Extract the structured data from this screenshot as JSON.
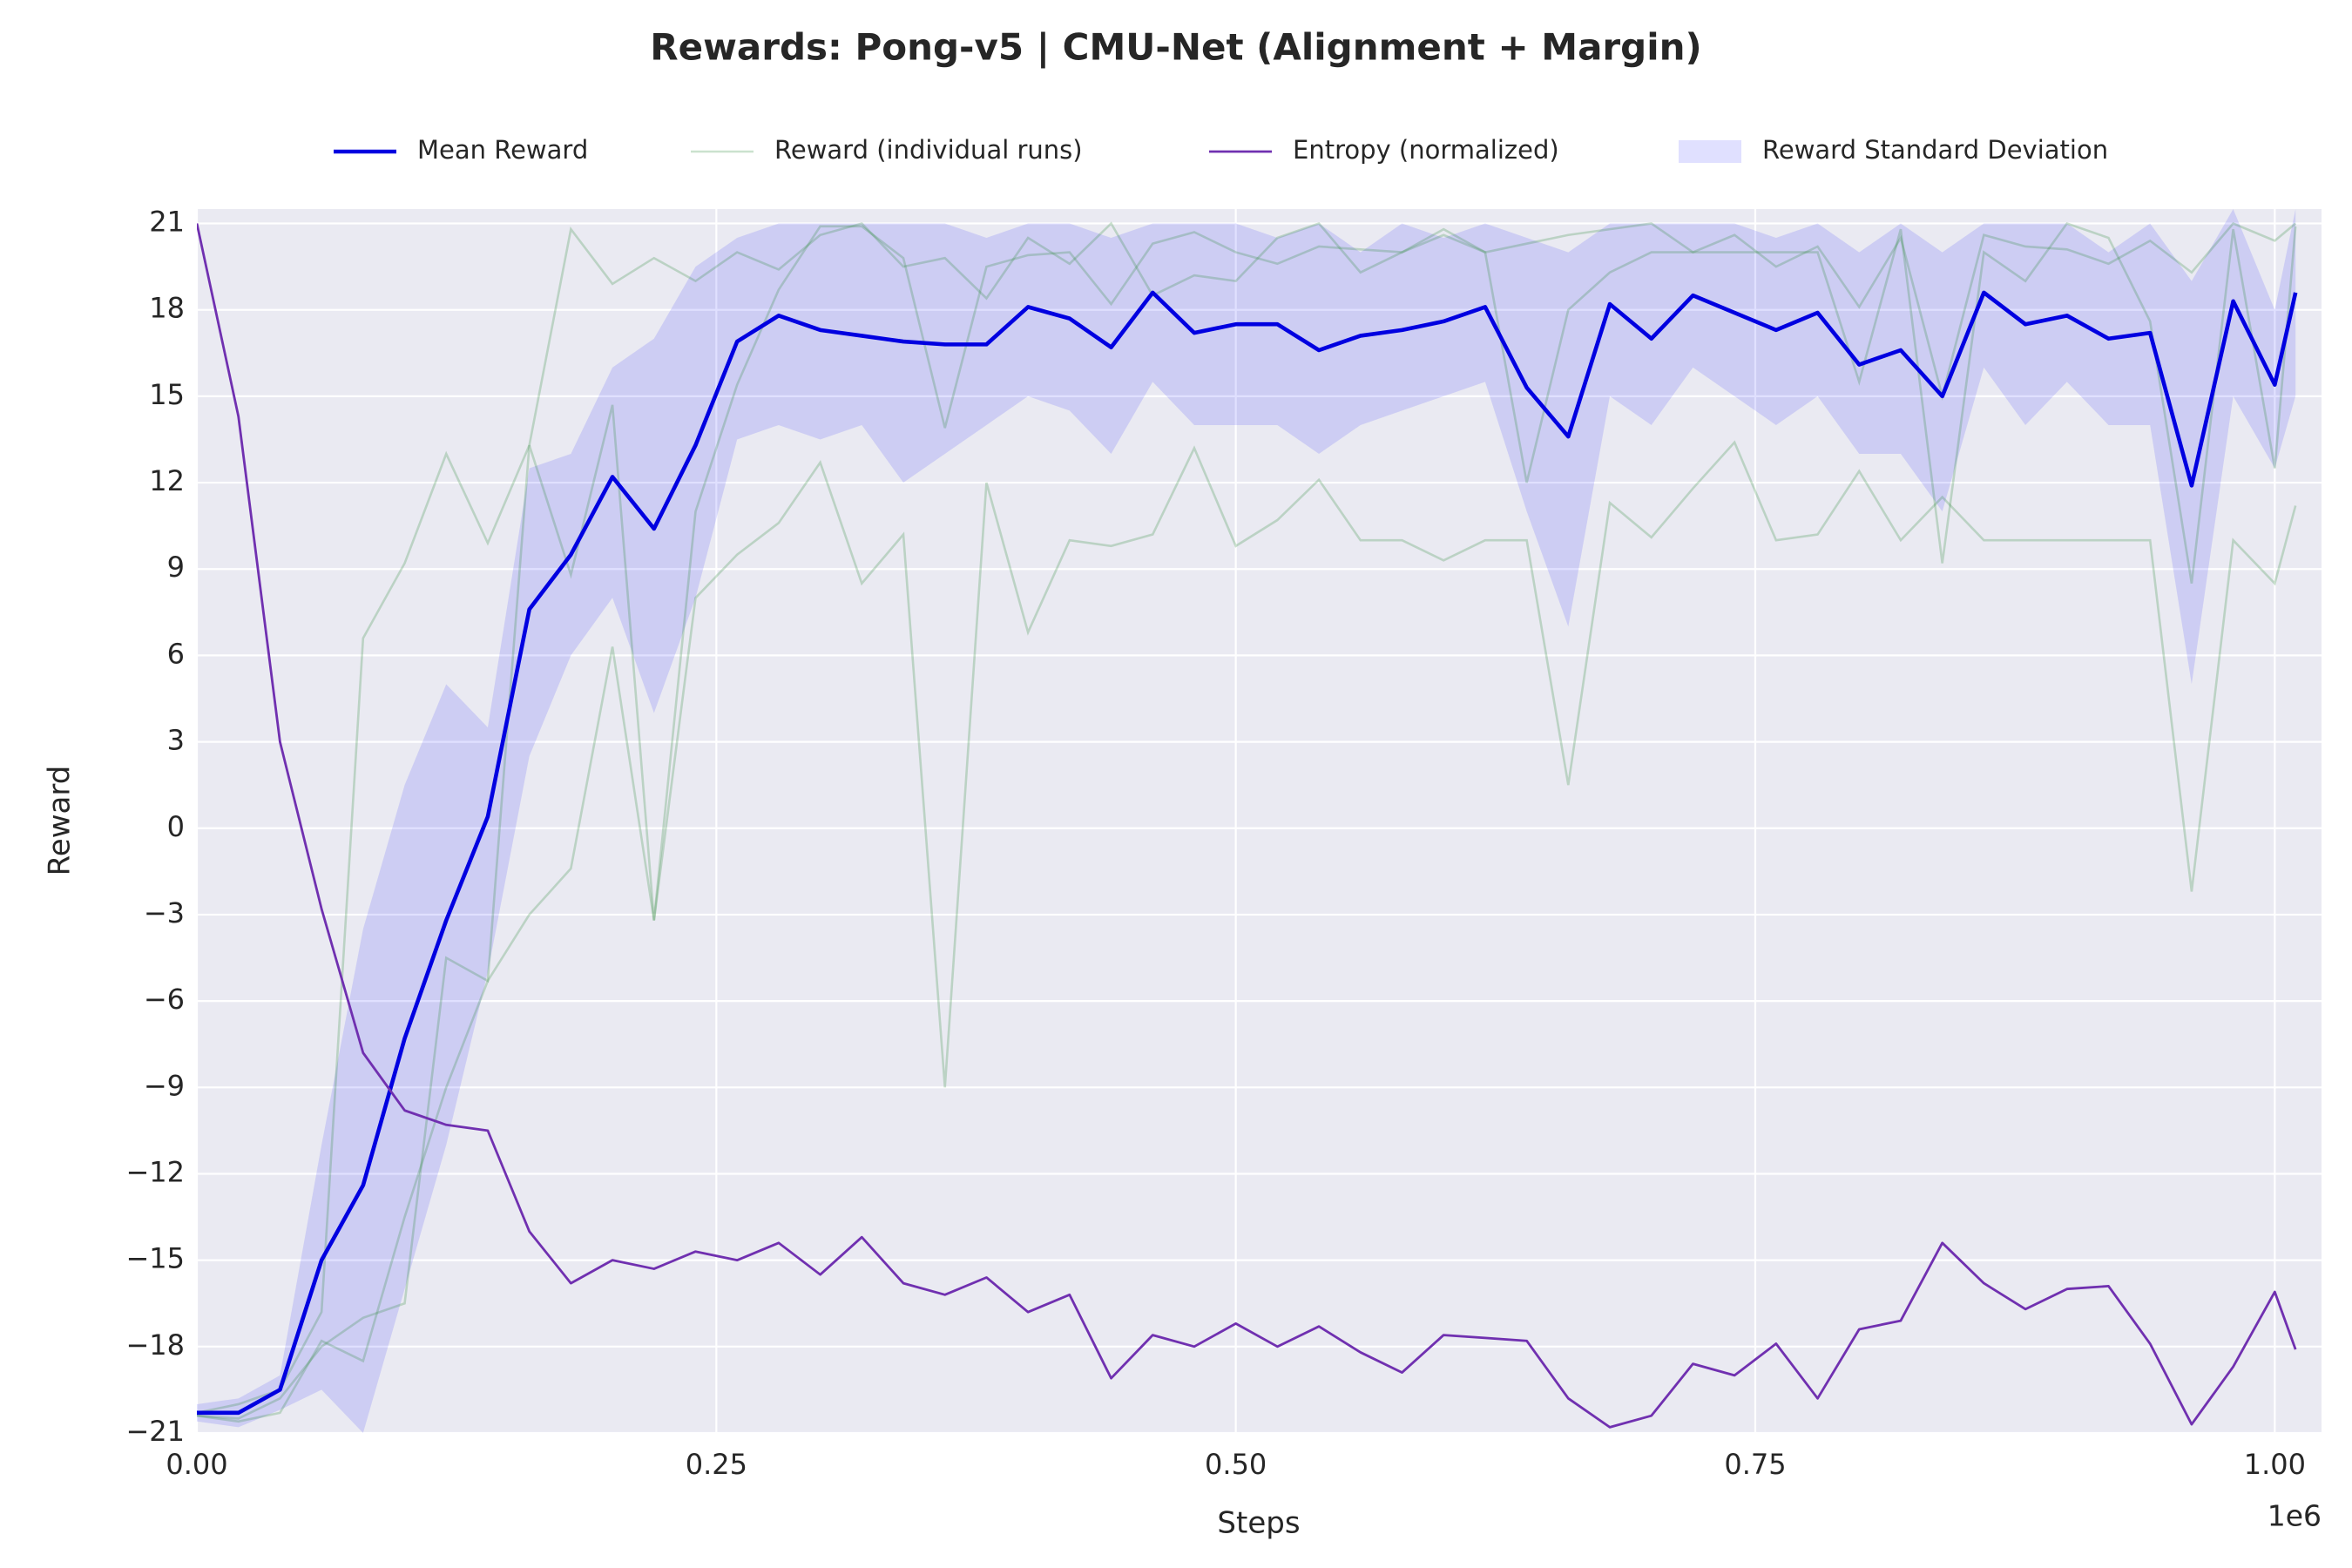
{
  "chart_data": {
    "type": "line",
    "title": "Rewards: Pong-v5 | CMU-Net (Alignment + Margin)",
    "xlabel": "Steps",
    "ylabel": "Reward",
    "x_offset_label": "1e6",
    "x": [
      0,
      20000,
      40000,
      60000,
      80000,
      100000,
      120000,
      140000,
      160000,
      180000,
      200000,
      220000,
      240000,
      260000,
      280000,
      300000,
      320000,
      340000,
      360000,
      380000,
      400000,
      420000,
      440000,
      460000,
      480000,
      500000,
      520000,
      540000,
      560000,
      580000,
      600000,
      620000,
      640000,
      660000,
      680000,
      700000,
      720000,
      740000,
      760000,
      780000,
      800000,
      820000,
      840000,
      860000,
      880000,
      900000,
      920000,
      940000,
      960000,
      980000,
      1000000,
      1010000
    ],
    "band": {
      "name": "Reward Standard Deviation",
      "color": "#0000ff",
      "upper": [
        -20,
        -19.8,
        -19,
        -11,
        -3.5,
        1.5,
        5,
        3.5,
        12.5,
        13,
        16,
        17,
        19.5,
        20.5,
        21,
        21,
        21,
        21,
        21,
        20.5,
        21,
        21,
        20.5,
        21,
        21,
        21,
        20.5,
        21,
        20,
        21,
        20.5,
        21,
        20.5,
        20,
        21,
        21,
        21,
        21,
        20.5,
        21,
        20,
        21,
        20,
        21,
        21,
        21,
        20,
        21,
        19,
        21.5,
        18,
        21.5
      ],
      "lower": [
        -20.6,
        -20.8,
        -20.2,
        -19.5,
        -21,
        -16,
        -11,
        -5,
        2.5,
        6,
        8,
        4,
        8,
        13.5,
        14,
        13.5,
        14,
        12,
        13,
        14,
        15,
        14.5,
        13,
        15.5,
        14,
        14,
        14,
        13,
        14,
        14.5,
        15,
        15.5,
        11,
        7,
        15,
        14,
        16,
        15,
        14,
        15,
        13,
        13,
        11,
        16,
        14,
        15.5,
        14,
        14,
        5,
        15,
        12.5,
        15
      ]
    },
    "runs": {
      "name": "Reward (individual runs)",
      "color": "#2e8b3a",
      "values": [
        [
          -20.4,
          -20.6,
          -20.3,
          -17.8,
          -18.5,
          -13.5,
          -9,
          -5.3,
          -3,
          -1.4,
          6.3,
          -3.2,
          8,
          9.5,
          10.6,
          12.7,
          8.5,
          10.2,
          -9,
          12,
          6.8,
          10,
          9.8,
          10.2,
          13.2,
          9.8,
          10.7,
          12.1,
          10,
          10,
          9.3,
          10,
          10,
          1.5,
          11.3,
          10.1,
          11.8,
          13.4,
          10,
          10.2,
          12.4,
          10,
          11.5,
          10,
          10,
          10,
          10,
          10,
          -2.2,
          10,
          8.5,
          11.2
        ],
        [
          -20.3,
          -20,
          -19.5,
          -16.8,
          6.6,
          9.2,
          13,
          9.9,
          13.3,
          20.8,
          18.9,
          19.8,
          19,
          20,
          19.4,
          20.6,
          21,
          19.5,
          19.8,
          18.4,
          20.5,
          19.6,
          21,
          18.5,
          19.2,
          19,
          20.5,
          21,
          19.3,
          20,
          20.6,
          20,
          20.3,
          20.6,
          20.8,
          21,
          20,
          20.6,
          19.5,
          20.2,
          18.1,
          20.5,
          15,
          20.6,
          20.2,
          20.1,
          19.6,
          20.4,
          19.3,
          21,
          20.4,
          21
        ],
        [
          -20.4,
          -20.5,
          -19.8,
          -18,
          -17,
          -16.5,
          -4.5,
          -5.3,
          13.3,
          8.8,
          14.7,
          -3.2,
          11,
          15.4,
          18.7,
          20.9,
          20.9,
          19.8,
          13.9,
          19.5,
          19.9,
          20,
          18.2,
          20.3,
          20.7,
          20,
          19.6,
          20.2,
          20.1,
          20,
          20.8,
          20,
          12,
          18,
          19.3,
          20,
          20,
          20,
          20,
          20,
          15.5,
          20.8,
          9.2,
          20,
          19,
          21,
          20.5,
          17.6,
          8.5,
          20.8,
          12.5,
          20.9
        ]
      ]
    },
    "series": [
      {
        "name": "Mean Reward",
        "color": "#0000e0",
        "values": [
          -20.3,
          -20.3,
          -19.5,
          -15,
          -12.4,
          -7.3,
          -3.2,
          0.4,
          7.6,
          9.5,
          12.2,
          10.4,
          13.3,
          16.9,
          17.8,
          17.3,
          17.1,
          16.9,
          16.8,
          16.8,
          18.1,
          17.7,
          16.7,
          18.6,
          17.2,
          17.5,
          17.5,
          16.6,
          17.1,
          17.3,
          17.6,
          18.1,
          15.3,
          13.6,
          18.2,
          17,
          18.5,
          17.9,
          17.3,
          17.9,
          16.1,
          16.6,
          15,
          18.6,
          17.5,
          17.8,
          17,
          17.2,
          11.9,
          18.3,
          15.4,
          18.6
        ]
      },
      {
        "name": "Entropy (normalized)",
        "color": "#7030b0",
        "values": [
          21,
          14.3,
          3,
          -2.8,
          -7.8,
          -9.8,
          -10.3,
          -10.5,
          -14,
          -15.8,
          -15,
          -15.3,
          -14.7,
          -15,
          -14.4,
          -15.5,
          -14.2,
          -15.8,
          -16.2,
          -15.6,
          -16.8,
          -16.2,
          -19.1,
          -17.6,
          -18,
          -17.2,
          -18,
          -17.3,
          -18.2,
          -18.9,
          -17.6,
          -17.7,
          -17.8,
          -19.8,
          -20.8,
          -20.4,
          -18.6,
          -19,
          -17.9,
          -19.8,
          -17.4,
          -17.1,
          -14.4,
          -15.8,
          -16.7,
          -16,
          -15.9,
          -17.9,
          -20.7,
          -18.7,
          -16.1,
          -18.1
        ]
      }
    ],
    "xlim": [
      0,
      1022500
    ],
    "ylim": [
      -21,
      21.5
    ],
    "xticks": [
      {
        "value": 0,
        "label": "0.00"
      },
      {
        "value": 250000,
        "label": "0.25"
      },
      {
        "value": 500000,
        "label": "0.50"
      },
      {
        "value": 750000,
        "label": "0.75"
      },
      {
        "value": 1000000,
        "label": "1.00"
      }
    ],
    "yticks": [
      {
        "value": -21,
        "label": "−21"
      },
      {
        "value": -18,
        "label": "−18"
      },
      {
        "value": -15,
        "label": "−15"
      },
      {
        "value": -12,
        "label": "−12"
      },
      {
        "value": -9,
        "label": "−9"
      },
      {
        "value": -6,
        "label": "−6"
      },
      {
        "value": -3,
        "label": "−3"
      },
      0,
      3,
      6,
      9,
      12,
      15,
      18,
      21
    ],
    "grid": true,
    "legend": "top"
  }
}
